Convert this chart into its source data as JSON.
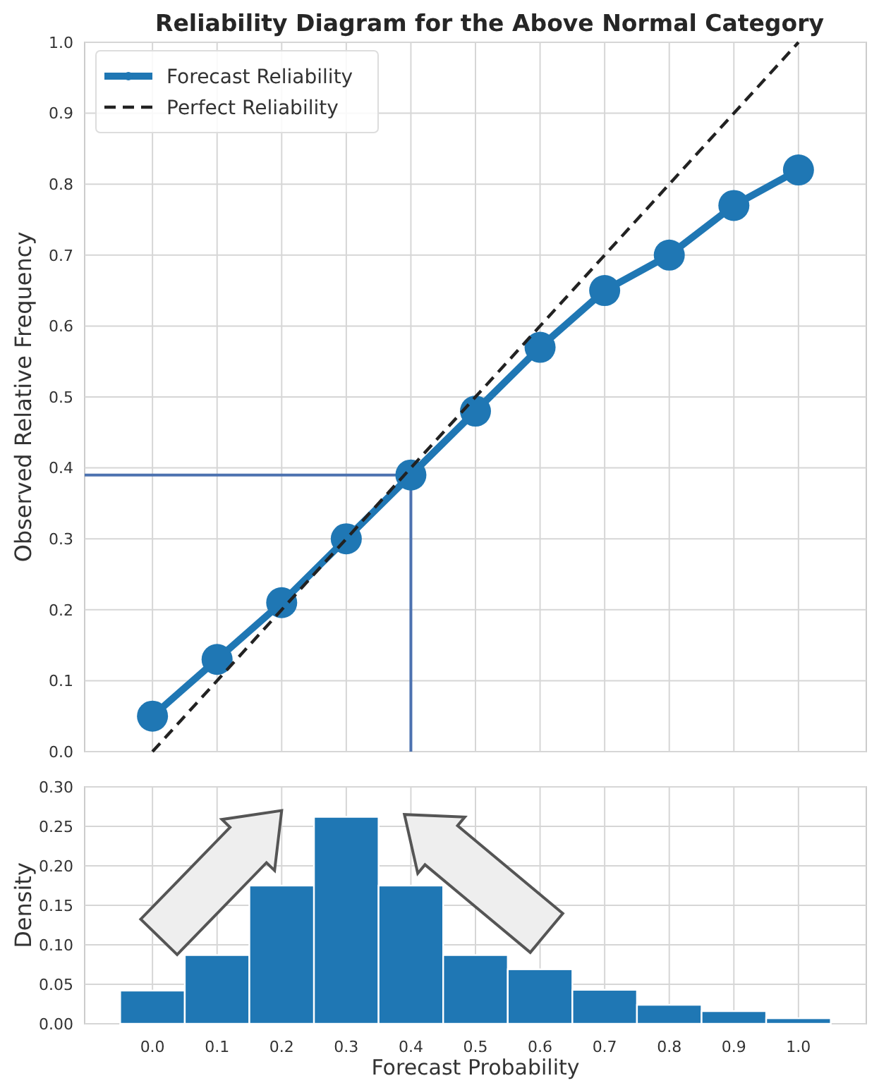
{
  "chart_data": [
    {
      "type": "line",
      "title": "Reliability Diagram for the Above Normal Category",
      "ylabel": "Observed Relative Frequency",
      "xlim": [
        -0.105,
        1.105
      ],
      "ylim": [
        0,
        1
      ],
      "xticks": [
        0,
        0.1,
        0.2,
        0.3,
        0.4,
        0.5,
        0.6,
        0.7,
        0.8,
        0.9,
        1.0
      ],
      "yticks": [
        {
          "value": 0,
          "label": "0.0"
        },
        0.1,
        0.2,
        0.3,
        0.4,
        0.5,
        0.6,
        0.7,
        0.8,
        0.9,
        {
          "value": 1,
          "label": "1.0"
        }
      ],
      "tick_labels": "y",
      "grid": true,
      "legend": "top left",
      "series": [
        {
          "name": "Forecast Reliability",
          "color": "#1f77b4",
          "marker": "circle",
          "line_style": "solid",
          "x": [
            0,
            0.1,
            0.2,
            0.3,
            0.4,
            0.5,
            0.6,
            0.7,
            0.8,
            0.9,
            1.0
          ],
          "values": [
            0.05,
            0.13,
            0.21,
            0.3,
            0.39,
            0.48,
            0.57,
            0.65,
            0.7,
            0.77,
            0.82
          ]
        },
        {
          "name": "Perfect Reliability",
          "color": "#222222",
          "marker": "none",
          "line_style": "dashed",
          "x": [
            0,
            1
          ],
          "values": [
            0,
            1
          ]
        }
      ],
      "ref_lines": [
        {
          "axis": "y",
          "value": 0.39,
          "color": "#4c72b0"
        },
        {
          "axis": "x",
          "value": 0.4,
          "color": "#4c72b0"
        }
      ]
    },
    {
      "type": "histogram",
      "xlabel": "Forecast Probability",
      "ylabel": "Density",
      "xlim": [
        -0.105,
        1.105
      ],
      "ylim": [
        0,
        0.3
      ],
      "xticks": [
        {
          "value": 0,
          "label": "0.0"
        },
        0.1,
        0.2,
        0.3,
        0.4,
        0.5,
        0.6,
        0.7,
        0.8,
        0.9,
        {
          "value": 1,
          "label": "1.0"
        }
      ],
      "yticks": [
        {
          "value": 0,
          "label": "0.00"
        },
        0.05,
        {
          "value": 0.1,
          "label": "0.10"
        },
        0.15,
        {
          "value": 0.2,
          "label": "0.20"
        },
        0.25,
        {
          "value": 0.3,
          "label": "0.30"
        }
      ],
      "grid": true,
      "color": "#1f77b4",
      "bins": [
        -0.05,
        0.05,
        0.15,
        0.25,
        0.35,
        0.45,
        0.55,
        0.65,
        0.75,
        0.85,
        0.95,
        1.05
      ],
      "values": [
        0.042,
        0.087,
        0.175,
        0.262,
        0.175,
        0.087,
        0.069,
        0.043,
        0.024,
        0.016,
        0.007
      ]
    }
  ]
}
